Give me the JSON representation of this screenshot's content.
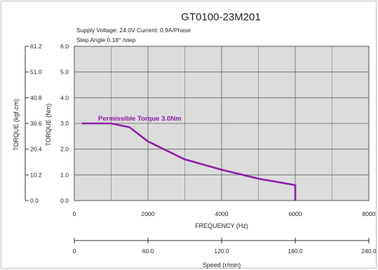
{
  "chart_data": {
    "type": "line",
    "title": "GT0100-23M201",
    "subtitle_lines": [
      "Supply Voltage: 24.0V   Current: 0.9A/Phase",
      "Step Angle 0.18°  /step"
    ],
    "xlabel": "FREQUENCY (Hz)",
    "ylabel": "TORQUE (Nm)",
    "y2label": "TORQUE (kgf·cm)",
    "speed_label": "Speed (r/min)",
    "xlim": [
      0,
      8000
    ],
    "ylim": [
      0,
      6.0
    ],
    "xticks": [
      "0",
      "2000",
      "4000",
      "6000",
      "8000"
    ],
    "yticks": [
      "0.0",
      "1.0",
      "2.0",
      "3.0",
      "4.0",
      "5.0",
      "6.0"
    ],
    "y2ticks": [
      "0.0",
      "10.2",
      "20.4",
      "30.6",
      "40.8",
      "51.0",
      "61.2"
    ],
    "speed_ticks": [
      "0",
      "60.0",
      "120.0",
      "180.0",
      "240.0"
    ],
    "grid": true,
    "annotation": "Permissible Torque 3.0Nm",
    "series": [
      {
        "color": "#8a1fa6",
        "x": [
          200,
          1000,
          1500,
          2000,
          3000,
          4000,
          5000,
          6000,
          6000
        ],
        "y": [
          3.0,
          3.0,
          2.85,
          2.3,
          1.6,
          1.2,
          0.85,
          0.6,
          0.0
        ]
      }
    ]
  }
}
